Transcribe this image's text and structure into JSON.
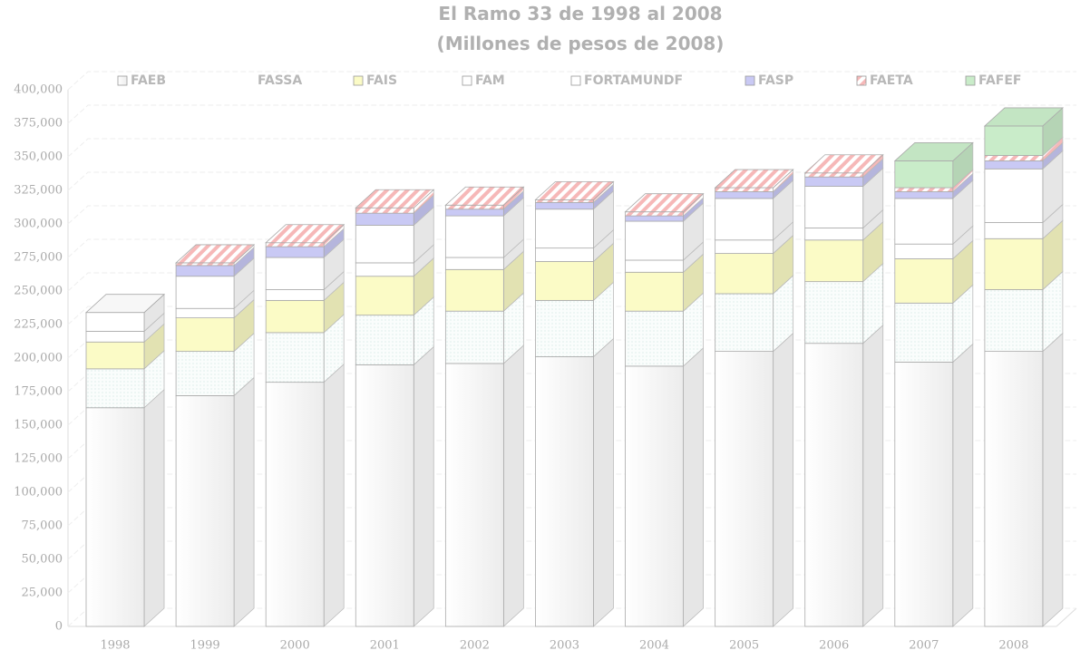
{
  "chart_data": {
    "type": "bar3d_stacked",
    "title": "El Ramo 33 de 1998 al 2008",
    "subtitle": "(Millones de pesos de 2008)",
    "categories": [
      "1998",
      "1999",
      "2000",
      "2001",
      "2002",
      "2003",
      "2004",
      "2005",
      "2006",
      "2007",
      "2008"
    ],
    "series": [
      {
        "name": "FAEB",
        "color": "#ffffff",
        "values": [
          163000,
          172000,
          182000,
          195000,
          196000,
          201000,
          194000,
          205000,
          211000,
          197000,
          205000
        ]
      },
      {
        "name": "FASSA",
        "color": "#eef6f4",
        "values": [
          29000,
          33000,
          37000,
          37000,
          39000,
          42000,
          41000,
          43000,
          46000,
          44000,
          46000
        ]
      },
      {
        "name": "FAIS",
        "color": "#fbfbc6",
        "values": [
          20000,
          25000,
          24000,
          29000,
          31000,
          29000,
          29000,
          30000,
          31000,
          33000,
          38000
        ]
      },
      {
        "name": "FAM",
        "color": "#ffffff",
        "values": [
          8000,
          7000,
          8000,
          10000,
          9000,
          10000,
          9000,
          10000,
          9000,
          11000,
          12000
        ]
      },
      {
        "name": "FORTAMUNDF",
        "color": "#ffffff",
        "values": [
          14000,
          24000,
          24000,
          28000,
          31000,
          29000,
          29000,
          31000,
          31000,
          34000,
          40000
        ]
      },
      {
        "name": "FASP",
        "color": "#c9c9f4",
        "values": [
          0,
          8000,
          8000,
          9000,
          5000,
          5000,
          4000,
          5000,
          7000,
          5000,
          6000
        ]
      },
      {
        "name": "FAETA",
        "color": "#f6b8b8",
        "values": [
          0,
          2000,
          3000,
          4000,
          3000,
          2000,
          3000,
          3000,
          3000,
          3000,
          4000
        ]
      },
      {
        "name": "FAFEF",
        "color": "#c9ecc9",
        "values": [
          0,
          0,
          0,
          0,
          0,
          0,
          0,
          0,
          0,
          20000,
          22000
        ]
      }
    ],
    "ylim": [
      0,
      400000
    ],
    "yticks": [
      0,
      {
        "value": 25000,
        "label": "25,000"
      },
      {
        "value": 50000,
        "label": "50,000"
      },
      {
        "value": 75000,
        "label": "75,000"
      },
      {
        "value": 100000,
        "label": "100,000"
      },
      {
        "value": 125000,
        "label": "125,000"
      },
      {
        "value": 150000,
        "label": "150,000"
      },
      {
        "value": 175000,
        "label": "175,000"
      },
      {
        "value": 200000,
        "label": "200,000"
      },
      {
        "value": 225000,
        "label": "225,000"
      },
      {
        "value": 250000,
        "label": "250,000"
      },
      {
        "value": 275000,
        "label": "275,000"
      },
      {
        "value": 300000,
        "label": "300,000"
      },
      {
        "value": 325000,
        "label": "325,000"
      },
      {
        "value": 350000,
        "label": "350,000"
      },
      {
        "value": 375000,
        "label": "375,000"
      },
      {
        "value": 400000,
        "label": "400,000"
      }
    ],
    "grid": true
  }
}
